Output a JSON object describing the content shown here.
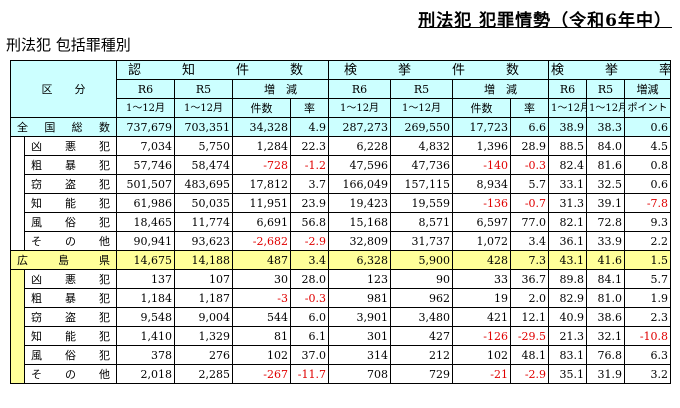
{
  "title": "刑法犯 犯罪情勢（令和6年中）",
  "subtitle": "刑法犯 包括罪種別",
  "header": {
    "category": "区　　分",
    "groups": [
      "認　知　件　数",
      "検　挙　件　数",
      "検　挙　率"
    ],
    "r6": "R6",
    "r5": "R5",
    "change": "増　減",
    "change_short": "増減",
    "period": "1〜12月",
    "count": "件数",
    "rate": "率",
    "point": "ポイント"
  },
  "rows": [
    {
      "label": "全国総数",
      "group": "nat",
      "cells": [
        "737,679",
        "703,351",
        "34,328",
        "4.9",
        "287,273",
        "269,550",
        "17,723",
        "6.6",
        "38.9",
        "38.3",
        "0.6"
      ]
    },
    {
      "label": "凶悪犯",
      "group": "n",
      "cells": [
        "7,034",
        "5,750",
        "1,284",
        "22.3",
        "6,228",
        "4,832",
        "1,396",
        "28.9",
        "88.5",
        "84.0",
        "4.5"
      ]
    },
    {
      "label": "粗暴犯",
      "group": "n",
      "cells": [
        "57,746",
        "58,474",
        "-728",
        "-1.2",
        "47,596",
        "47,736",
        "-140",
        "-0.3",
        "82.4",
        "81.6",
        "0.8"
      ]
    },
    {
      "label": "窃盗犯",
      "group": "n",
      "cells": [
        "501,507",
        "483,695",
        "17,812",
        "3.7",
        "166,049",
        "157,115",
        "8,934",
        "5.7",
        "33.1",
        "32.5",
        "0.6"
      ]
    },
    {
      "label": "知能犯",
      "group": "n",
      "cells": [
        "61,986",
        "50,035",
        "11,951",
        "23.9",
        "19,423",
        "19,559",
        "-136",
        "-0.7",
        "31.3",
        "39.1",
        "-7.8"
      ]
    },
    {
      "label": "風俗犯",
      "group": "n",
      "cells": [
        "18,465",
        "11,774",
        "6,691",
        "56.8",
        "15,168",
        "8,571",
        "6,597",
        "77.0",
        "82.1",
        "72.8",
        "9.3"
      ]
    },
    {
      "label": "その他",
      "group": "n",
      "cells": [
        "90,941",
        "93,623",
        "-2,682",
        "-2.9",
        "32,809",
        "31,737",
        "1,072",
        "3.4",
        "36.1",
        "33.9",
        "2.2"
      ]
    },
    {
      "label": "広島県",
      "group": "pref",
      "cells": [
        "14,675",
        "14,188",
        "487",
        "3.4",
        "6,328",
        "5,900",
        "428",
        "7.3",
        "43.1",
        "41.6",
        "1.5"
      ]
    },
    {
      "label": "凶悪犯",
      "group": "p",
      "cells": [
        "137",
        "107",
        "30",
        "28.0",
        "123",
        "90",
        "33",
        "36.7",
        "89.8",
        "84.1",
        "5.7"
      ]
    },
    {
      "label": "粗暴犯",
      "group": "p",
      "cells": [
        "1,184",
        "1,187",
        "-3",
        "-0.3",
        "981",
        "962",
        "19",
        "2.0",
        "82.9",
        "81.0",
        "1.9"
      ]
    },
    {
      "label": "窃盗犯",
      "group": "p",
      "cells": [
        "9,548",
        "9,004",
        "544",
        "6.0",
        "3,901",
        "3,480",
        "421",
        "12.1",
        "40.9",
        "38.6",
        "2.3"
      ]
    },
    {
      "label": "知能犯",
      "group": "p",
      "cells": [
        "1,410",
        "1,329",
        "81",
        "6.1",
        "301",
        "427",
        "-126",
        "-29.5",
        "21.3",
        "32.1",
        "-10.8"
      ]
    },
    {
      "label": "風俗犯",
      "group": "p",
      "cells": [
        "378",
        "276",
        "102",
        "37.0",
        "314",
        "212",
        "102",
        "48.1",
        "83.1",
        "76.8",
        "6.3"
      ]
    },
    {
      "label": "その他",
      "group": "p",
      "cells": [
        "2,018",
        "2,285",
        "-267",
        "-11.7",
        "708",
        "729",
        "-21",
        "-2.9",
        "35.1",
        "31.9",
        "3.2"
      ]
    }
  ],
  "colors": {
    "header_bg": "#ccffff",
    "national_bg": "#ccffff",
    "prefecture_bg": "#ffff99",
    "negative": "#e00000"
  }
}
